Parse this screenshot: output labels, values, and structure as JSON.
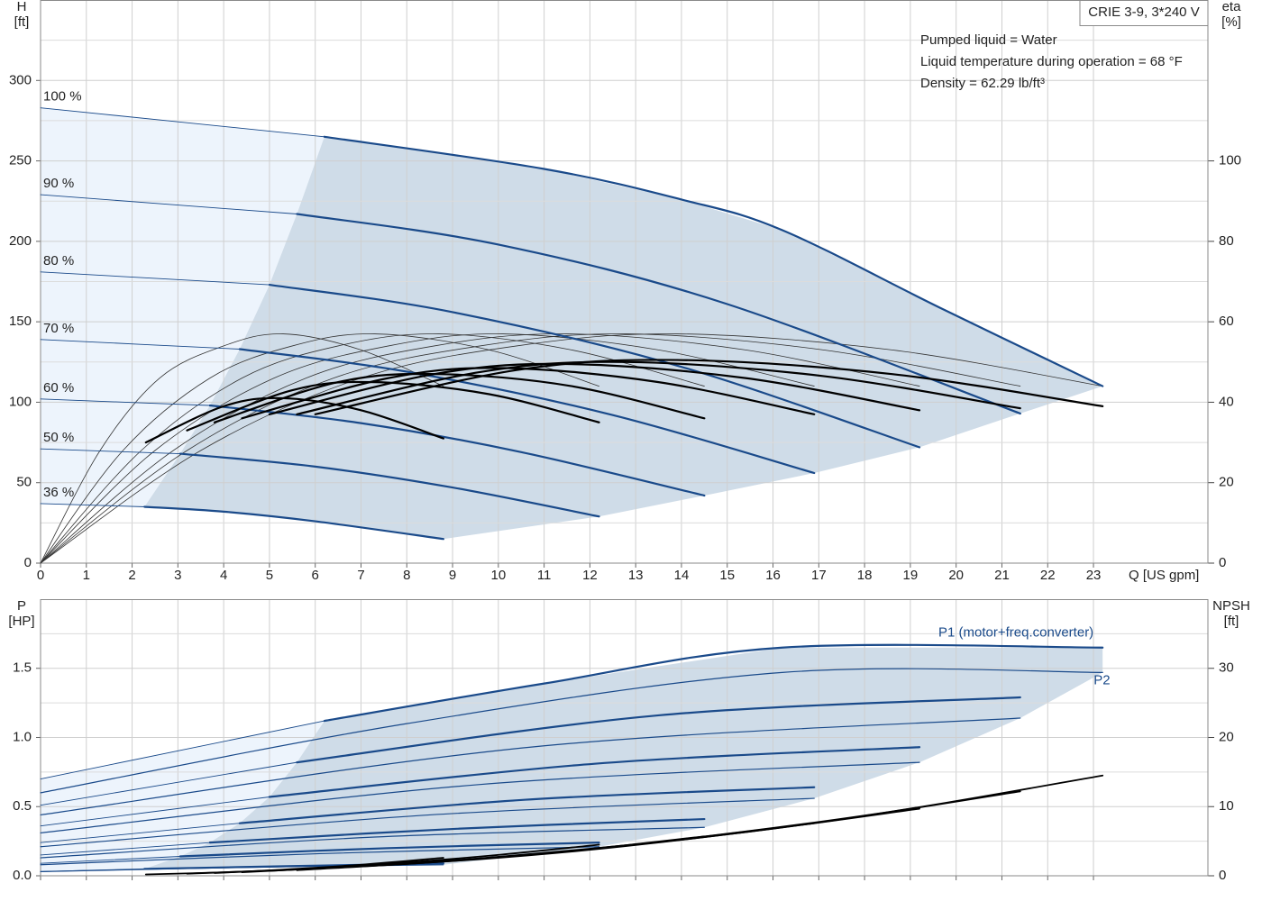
{
  "chart_data": [
    {
      "type": "line",
      "title": "CRIE 3-9, 3*240 V",
      "notes": [
        "Pumped liquid = Water",
        "Liquid temperature during operation = 68 °F",
        "Density = 62.29 lb/ft³"
      ],
      "ylabel": "H",
      "yunit": "[ft]",
      "y2label": "eta",
      "y2unit": "[%]",
      "xlabel": "Q [US gpm]",
      "xlim": [
        0,
        25.5
      ],
      "xticks": [
        0,
        1,
        2,
        3,
        4,
        5,
        6,
        7,
        8,
        9,
        10,
        11,
        12,
        13,
        14,
        15,
        16,
        17,
        18,
        19,
        20,
        21,
        22,
        23
      ],
      "ylim": [
        0,
        350
      ],
      "yticks": [
        0,
        50,
        100,
        150,
        200,
        250,
        300
      ],
      "yminor": [
        25,
        75,
        125,
        175,
        225,
        275,
        325
      ],
      "y2lim": [
        0,
        140
      ],
      "y2ticks": [
        0,
        20,
        40,
        60,
        80,
        100
      ],
      "grid": true,
      "region_color": "#cfdce8",
      "region_light_color": "#edf4fc",
      "series": [
        {
          "name": "100 %",
          "color": "#1a4a8a",
          "x_start": [
            0,
            6.2
          ],
          "values_start": [
            283,
            265
          ],
          "x": [
            6.2,
            11,
            14,
            16.2,
            19.7,
            23.2
          ],
          "values": [
            265,
            245,
            226,
            207,
            158,
            110
          ]
        },
        {
          "name": "90 %",
          "color": "#1a4a8a",
          "x_start": [
            0,
            5.6
          ],
          "values_start": [
            229,
            217
          ],
          "x": [
            5.6,
            10,
            15,
            21.4
          ],
          "values": [
            217,
            198,
            161,
            93
          ]
        },
        {
          "name": "80 %",
          "color": "#1a4a8a",
          "x_start": [
            0,
            5
          ],
          "values_start": [
            181,
            173
          ],
          "x": [
            5,
            9,
            14,
            19.2
          ],
          "values": [
            173,
            156,
            122,
            72
          ]
        },
        {
          "name": "70 %",
          "color": "#1a4a8a",
          "x_start": [
            0,
            4.35
          ],
          "values_start": [
            139,
            133
          ],
          "x": [
            4.35,
            8,
            12.5,
            16.9
          ],
          "values": [
            133,
            119,
            92,
            56
          ]
        },
        {
          "name": "60 %",
          "color": "#1a4a8a",
          "x_start": [
            0,
            3.7
          ],
          "values_start": [
            102,
            98
          ],
          "x": [
            3.7,
            7,
            10.5,
            14.5
          ],
          "values": [
            98,
            87,
            69,
            42
          ]
        },
        {
          "name": "50 %",
          "color": "#1a4a8a",
          "x_start": [
            0,
            3.05
          ],
          "values_start": [
            71,
            68
          ],
          "x": [
            3.05,
            6,
            9,
            12.2
          ],
          "values": [
            68,
            60,
            47,
            29
          ]
        },
        {
          "name": "36 %",
          "color": "#1a4a8a",
          "x_start": [
            0,
            2.27
          ],
          "values_start": [
            37,
            35
          ],
          "x": [
            2.27,
            4,
            6,
            8.8
          ],
          "values": [
            35,
            32,
            26,
            15
          ]
        }
      ],
      "eta_series": [
        {
          "axis": "y2",
          "color": "#333333",
          "x": [
            0,
            3.5,
            7.0,
            10.4,
            13.9,
            18.6,
            23.2
          ],
          "values": [
            0,
            28,
            46,
            54,
            57,
            53,
            44
          ]
        },
        {
          "axis": "y2",
          "color": "#333333",
          "x": [
            0,
            3.2,
            6.4,
            9.6,
            12.8,
            17.1,
            21.4
          ],
          "values": [
            0,
            28,
            46,
            54,
            57,
            53,
            44
          ]
        },
        {
          "axis": "y2",
          "color": "#333333",
          "x": [
            0,
            2.9,
            5.8,
            8.6,
            11.5,
            15.4,
            19.2
          ],
          "values": [
            0,
            28,
            46,
            54,
            57,
            53,
            44
          ]
        },
        {
          "axis": "y2",
          "color": "#333333",
          "x": [
            0,
            2.5,
            5.1,
            7.6,
            10.1,
            13.5,
            16.9
          ],
          "values": [
            0,
            28,
            46,
            54,
            57,
            53,
            44
          ]
        },
        {
          "axis": "y2",
          "color": "#333333",
          "x": [
            0,
            2.2,
            4.4,
            6.5,
            8.7,
            11.6,
            14.5
          ],
          "values": [
            0,
            28,
            46,
            54,
            57,
            53,
            44
          ]
        },
        {
          "axis": "y2",
          "color": "#333333",
          "x": [
            0,
            1.8,
            3.7,
            5.5,
            7.3,
            9.8,
            12.2
          ],
          "values": [
            0,
            28,
            46,
            54,
            57,
            53,
            44
          ]
        },
        {
          "axis": "y2",
          "color": "#333333",
          "x": [
            0,
            1.3,
            2.6,
            4.0,
            5.3,
            7.0,
            8.8
          ],
          "values": [
            0,
            28,
            46,
            54,
            57,
            53,
            44
          ]
        }
      ],
      "eta_total_series": [
        {
          "axis": "y2",
          "color": "#000000",
          "x": [
            6.0,
            10.4,
            13.9,
            18.6,
            23.2
          ],
          "values": [
            37,
            48,
            50.5,
            47,
            39
          ]
        },
        {
          "axis": "y2",
          "color": "#000000",
          "x": [
            5.6,
            9.6,
            12.8,
            17.1,
            21.4
          ],
          "values": [
            37,
            47.5,
            50,
            46.5,
            38.5
          ]
        },
        {
          "axis": "y2",
          "color": "#000000",
          "x": [
            5.0,
            8.6,
            11.5,
            15.4,
            19.2
          ],
          "values": [
            37,
            47,
            49.5,
            46,
            38
          ]
        },
        {
          "axis": "y2",
          "color": "#000000",
          "x": [
            4.4,
            7.6,
            10.1,
            13.5,
            16.9
          ],
          "values": [
            36,
            46,
            48.5,
            45,
            37
          ]
        },
        {
          "axis": "y2",
          "color": "#000000",
          "x": [
            3.8,
            6.5,
            8.7,
            11.6,
            14.5
          ],
          "values": [
            35,
            45,
            47,
            44,
            36
          ]
        },
        {
          "axis": "y2",
          "color": "#000000",
          "x": [
            3.2,
            5.5,
            7.3,
            9.8,
            12.2
          ],
          "values": [
            33,
            43,
            45,
            42,
            35
          ]
        },
        {
          "axis": "y2",
          "color": "#000000",
          "x": [
            2.3,
            4.0,
            5.3,
            7.0,
            8.8
          ],
          "values": [
            30,
            39,
            41,
            38,
            31
          ]
        }
      ]
    },
    {
      "type": "line",
      "ylabel": "P",
      "yunit": "[HP]",
      "y2label": "NPSH",
      "y2unit": "[ft]",
      "xlim": [
        0,
        25.5
      ],
      "xticks": [
        0,
        1,
        2,
        3,
        4,
        5,
        6,
        7,
        8,
        9,
        10,
        11,
        12,
        13,
        14,
        15,
        16,
        17,
        18,
        19,
        20,
        21,
        22,
        23
      ],
      "ylim": [
        0,
        2
      ],
      "yticks": [
        {
          "value": 0,
          "label": "0.0"
        },
        0.5,
        {
          "value": 1,
          "label": "1.0"
        },
        1.5
      ],
      "yminor": [
        0.25,
        0.75,
        1.25,
        1.75
      ],
      "y2lim": [
        0,
        40
      ],
      "y2ticks": [
        0,
        10,
        20,
        30
      ],
      "grid": true,
      "region_color": "#cfdce8",
      "region_light_color": "#edf4fc",
      "series": [
        {
          "name": "P1 (motor+freq.converter)",
          "color": "#1a4a8a",
          "curves": [
            {
              "x_start": [
                0,
                6.2
              ],
              "values_start": [
                0.7,
                1.12
              ],
              "x": [
                6.2,
                11,
                16.2,
                23.2
              ],
              "values": [
                1.12,
                1.39,
                1.65,
                1.65
              ]
            },
            {
              "x_start": [
                0,
                5.6
              ],
              "values_start": [
                0.51,
                0.82
              ],
              "x": [
                5.6,
                13.5,
                21.4
              ],
              "values": [
                0.82,
                1.16,
                1.29
              ]
            },
            {
              "x_start": [
                0,
                5
              ],
              "values_start": [
                0.36,
                0.57
              ],
              "x": [
                5,
                12.1,
                19.2
              ],
              "values": [
                0.57,
                0.81,
                0.93
              ]
            },
            {
              "x_start": [
                0,
                4.35
              ],
              "values_start": [
                0.24,
                0.38
              ],
              "x": [
                4.35,
                10.6,
                16.9
              ],
              "values": [
                0.38,
                0.55,
                0.64
              ]
            },
            {
              "x_start": [
                0,
                3.7
              ],
              "values_start": [
                0.15,
                0.24
              ],
              "x": [
                3.7,
                9.1,
                14.5
              ],
              "values": [
                0.24,
                0.34,
                0.41
              ]
            },
            {
              "x_start": [
                0,
                3.05
              ],
              "values_start": [
                0.09,
                0.14
              ],
              "x": [
                3.05,
                7.6,
                12.2
              ],
              "values": [
                0.14,
                0.2,
                0.24
              ]
            },
            {
              "x_start": [
                0,
                2.27
              ],
              "values_start": [
                0.03,
                0.05
              ],
              "x": [
                2.27,
                5.5,
                8.8
              ],
              "values": [
                0.05,
                0.07,
                0.09
              ]
            }
          ]
        },
        {
          "name": "P2",
          "color": "#1a4a8a",
          "curves": [
            {
              "x": [
                0,
                8,
                16.2,
                23.2
              ],
              "values": [
                0.6,
                1.1,
                1.47,
                1.47
              ]
            },
            {
              "x": [
                0,
                10.7,
                21.4
              ],
              "values": [
                0.44,
                0.93,
                1.14
              ]
            },
            {
              "x": [
                0,
                9.6,
                19.2
              ],
              "values": [
                0.31,
                0.66,
                0.82
              ]
            },
            {
              "x": [
                0,
                8.5,
                16.9
              ],
              "values": [
                0.21,
                0.44,
                0.56
              ]
            },
            {
              "x": [
                0,
                7.3,
                14.5
              ],
              "values": [
                0.13,
                0.28,
                0.35
              ]
            },
            {
              "x": [
                0,
                6.1,
                12.2
              ],
              "values": [
                0.08,
                0.16,
                0.21
              ]
            },
            {
              "x": [
                0,
                4.4,
                8.8
              ],
              "values": [
                0.03,
                0.06,
                0.08
              ]
            }
          ]
        }
      ],
      "npsh_series": [
        {
          "axis": "y2",
          "color": "#000000",
          "x": [
            6.0,
            10.4,
            13.9,
            18.6,
            23.2
          ],
          "values": [
            1.0,
            2.9,
            5.2,
            9.3,
            14.5
          ]
        },
        {
          "axis": "y2",
          "color": "#000000",
          "x": [
            5.6,
            9.6,
            12.8,
            17.1,
            21.4
          ],
          "values": [
            0.8,
            2.4,
            4.3,
            7.8,
            12.2
          ]
        },
        {
          "axis": "y2",
          "color": "#000000",
          "x": [
            5.0,
            8.6,
            11.5,
            15.4,
            19.2
          ],
          "values": [
            0.7,
            2.0,
            3.5,
            6.3,
            9.7
          ]
        },
        {
          "axis": "y2",
          "color": "#000000",
          "x": [
            4.4,
            7.6,
            10.1,
            13.5,
            16.9
          ],
          "values": [
            0.5,
            1.6,
            2.8,
            4.9,
            7.6
          ]
        },
        {
          "axis": "y2",
          "color": "#000000",
          "x": [
            3.8,
            6.5,
            8.7,
            11.6,
            14.5
          ],
          "values": [
            0.4,
            1.2,
            2.0,
            3.6,
            5.7
          ]
        },
        {
          "axis": "y2",
          "color": "#000000",
          "x": [
            3.2,
            5.5,
            7.3,
            9.8,
            12.2
          ],
          "values": [
            0.3,
            0.9,
            1.6,
            2.9,
            4.5
          ]
        },
        {
          "axis": "y2",
          "color": "#000000",
          "x": [
            2.3,
            4.0,
            5.3,
            7.0,
            8.8
          ],
          "values": [
            0.2,
            0.5,
            0.9,
            1.6,
            2.6
          ]
        }
      ]
    }
  ]
}
